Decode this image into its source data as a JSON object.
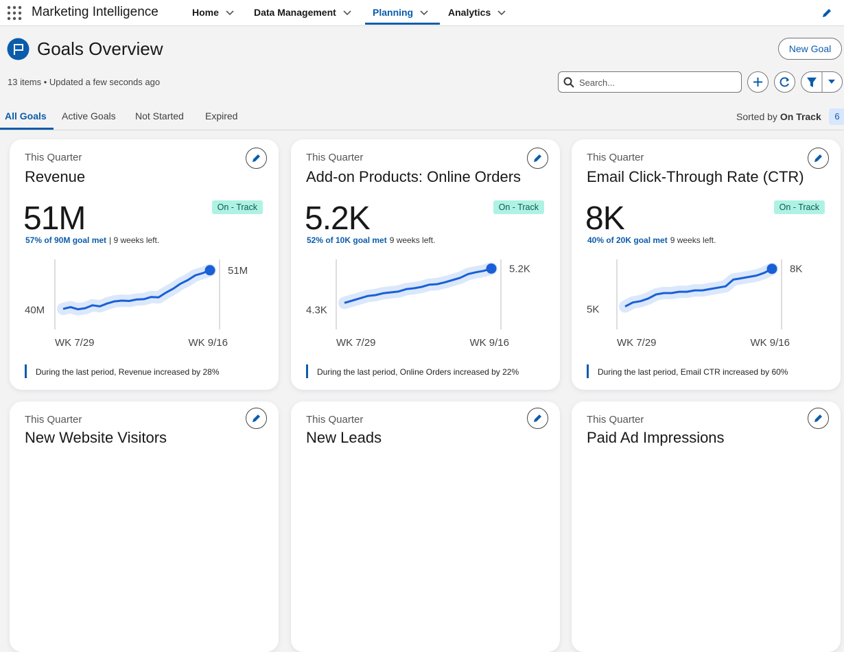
{
  "nav": {
    "app_name": "Marketing Intelligence",
    "items": [
      "Home",
      "Data Management",
      "Planning",
      "Analytics"
    ],
    "active": 2
  },
  "header": {
    "title": "Goals Overview",
    "meta": "13 items • Updated a few seconds ago",
    "new_button": "New Goal",
    "search_placeholder": "Search..."
  },
  "tabs": {
    "items": [
      "All Goals",
      "Active Goals",
      "Not Started",
      "Expired"
    ],
    "active": 0,
    "sorted_by_label": "Sorted by",
    "sorted_by_value": "On Track",
    "count": "6"
  },
  "cards": [
    {
      "period": "This Quarter",
      "title": "Revenue",
      "value": "51M",
      "progress": "57% of 90M goal met",
      "time_left": "| 9 weeks left.",
      "status": "On - Track",
      "chart": {
        "x_start": "WK 7/29",
        "x_end": "WK 9/16",
        "ylim": [
          35,
          54
        ],
        "yticks": [
          {
            "value": 40,
            "label": "40M"
          },
          {
            "value": 51,
            "label": "51M"
          }
        ],
        "values": [
          40.3,
          40.8,
          40.2,
          40.5,
          41.3,
          41.0,
          41.8,
          42.4,
          42.6,
          42.5,
          42.9,
          43.0,
          43.6,
          43.5,
          44.8,
          45.9,
          47.3,
          48.3,
          49.6,
          50.2,
          51
        ]
      },
      "note": "During the last period, Revenue increased by 28%"
    },
    {
      "period": "This Quarter",
      "title": "Add-on Products: Online Orders",
      "value": "5.2K",
      "progress": "52% of 10K goal met",
      "time_left": "9 weeks left.",
      "status": "On - Track",
      "chart": {
        "x_start": "WK 7/29",
        "x_end": "WK 9/16",
        "ylim": [
          3.9,
          5.4
        ],
        "yticks": [
          {
            "value": 4.3,
            "label": "4.3K"
          },
          {
            "value": 5.2,
            "label": "5.2K"
          }
        ],
        "values": [
          4.45,
          4.5,
          4.55,
          4.6,
          4.62,
          4.66,
          4.68,
          4.7,
          4.75,
          4.77,
          4.8,
          4.85,
          4.86,
          4.9,
          4.95,
          5.0,
          5.08,
          5.12,
          5.15,
          5.2
        ]
      },
      "note": "During the last period, Online Orders increased by 22%"
    },
    {
      "period": "This Quarter",
      "title": "Email Click-Through Rate (CTR)",
      "value": "8K",
      "progress": "40% of 20K goal met",
      "time_left": "9 weeks left.",
      "status": "On - Track",
      "chart": {
        "x_start": "WK 7/29",
        "x_end": "WK 9/16",
        "ylim": [
          3.6,
          8.7
        ],
        "yticks": [
          {
            "value": 5,
            "label": "5K"
          },
          {
            "value": 8,
            "label": "8K"
          }
        ],
        "values": [
          5.2,
          5.5,
          5.6,
          5.8,
          6.1,
          6.2,
          6.2,
          6.3,
          6.3,
          6.4,
          6.4,
          6.5,
          6.6,
          6.7,
          7.2,
          7.3,
          7.4,
          7.5,
          7.7,
          8.0
        ]
      },
      "note": "During the last period, Email CTR increased by 60%"
    }
  ],
  "more_cards": [
    {
      "period": "This Quarter",
      "title": "New Website Visitors"
    },
    {
      "period": "This Quarter",
      "title": "New Leads"
    },
    {
      "period": "This Quarter",
      "title": "Paid Ad Impressions"
    }
  ]
}
